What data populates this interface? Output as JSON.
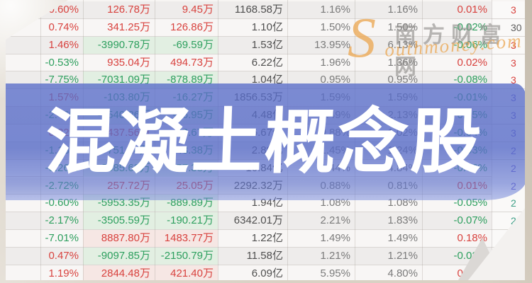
{
  "banner": {
    "title": "混凝土概念股"
  },
  "watermark": {
    "s": "S",
    "cn": "南方财富网",
    "en": "outhmoney.com"
  },
  "colors": {
    "red": "#d8423e",
    "green": "#2d9f5e",
    "banner_blue": "#586cc8",
    "flash_green": "#e2efe2",
    "flash_pink": "#f6e7e4",
    "watermark_orange": "#ecaa58",
    "code_purple": "#6a5fd0",
    "code_teal": "#3d9f86",
    "code_gray": "#5d5d5d"
  },
  "table": {
    "rows": [
      {
        "values": [
          "0.60%",
          "126.78万",
          "9.45万",
          "1168.58万",
          "1.16%",
          "1.16%",
          "0.01%",
          "3"
        ],
        "code_color": "red",
        "flash": [
          "",
          ""
        ]
      },
      {
        "values": [
          "0.74%",
          "341.25万",
          "126.86万",
          "1.10亿",
          "1.50%",
          "1.50%",
          "-0.02%",
          "30"
        ],
        "code_color": "gray",
        "flash": [
          "",
          ""
        ]
      },
      {
        "values": [
          "1.46%",
          "-3990.78万",
          "-69.59万",
          "1.53亿",
          "13.95%",
          "6.13%",
          "-0.06%",
          "3"
        ],
        "code_color": "red",
        "flash": [
          "g",
          "g"
        ]
      },
      {
        "values": [
          "-0.53%",
          "935.04万",
          "494.73万",
          "6.22亿",
          "1.96%",
          "1.36%",
          "0.02%",
          "3"
        ],
        "code_color": "red",
        "flash": [
          "",
          ""
        ]
      },
      {
        "values": [
          "-7.75%",
          "-7031.09万",
          "-878.89万",
          "1.04亿",
          "0.95%",
          "0.95%",
          "-0.08%",
          "3"
        ],
        "code_color": "red",
        "flash": [
          "g",
          "g"
        ]
      },
      {
        "values": [
          "1.57%",
          "-103.80万",
          "-16.27万",
          "1856.53万",
          "1.59%",
          "1.59%",
          "-0.01%",
          "3"
        ],
        "code_color": "purple",
        "flash": [
          "",
          ""
        ]
      },
      {
        "values": [
          "-2.46%",
          "-1540.26万",
          "-66.95万",
          "4.48亿",
          "1.49%",
          "2.13%",
          "-0.05%",
          "3"
        ],
        "code_color": "purple",
        "flash": [
          "g",
          "g"
        ]
      },
      {
        "values": [
          "0.32%",
          "437.56万",
          "-93.67万",
          "6.67亿",
          "0.88%",
          "1.02%",
          "-0.04%",
          "3"
        ],
        "code_color": "purple",
        "flash": [
          "",
          ""
        ]
      },
      {
        "values": [
          "-1.18%",
          "-751.24万",
          "-43.38万",
          "2.89亿",
          "1.45%",
          "1.24%",
          "-0.03%",
          "2"
        ],
        "code_color": "purple",
        "flash": [
          "",
          ""
        ]
      },
      {
        "values": [
          "-0.26%",
          "-3585.62万",
          "-57.38万",
          "10.84亿",
          "1.44%",
          "4.84%",
          "-0.06%",
          "2"
        ],
        "code_color": "purple",
        "flash": [
          "g",
          "g"
        ]
      },
      {
        "values": [
          "-2.72%",
          "257.72万",
          "25.05万",
          "2292.32万",
          "0.88%",
          "0.81%",
          "0.01%",
          "2"
        ],
        "code_color": "purple",
        "flash": [
          "",
          ""
        ]
      },
      {
        "values": [
          "-0.60%",
          "-5953.35万",
          "-889.89万",
          "1.94亿",
          "1.08%",
          "1.08%",
          "-0.05%",
          "2"
        ],
        "code_color": "teal",
        "flash": [
          "g",
          "g"
        ]
      },
      {
        "values": [
          "-2.17%",
          "-3505.59万",
          "-190.21万",
          "6342.01万",
          "2.21%",
          "1.83%",
          "-0.07%",
          "2"
        ],
        "code_color": "teal",
        "flash": [
          "g",
          "g"
        ]
      },
      {
        "values": [
          "-7.01%",
          "8887.80万",
          "1483.77万",
          "1.22亿",
          "1.49%",
          "1.49%",
          "0.18%",
          "2"
        ],
        "code_color": "teal",
        "flash": [
          "p",
          "p"
        ]
      },
      {
        "values": [
          "0.47%",
          "-9097.85万",
          "-2150.79万",
          "11.58亿",
          "1.21%",
          "1.21%",
          "-0.02%",
          "2"
        ],
        "code_color": "teal",
        "flash": [
          "g",
          "g"
        ]
      },
      {
        "values": [
          "1.19%",
          "2844.48万",
          "421.40万",
          "6.09亿",
          "5.95%",
          "4.80%",
          "0.04%",
          "2"
        ],
        "code_color": "teal",
        "flash": [
          "p",
          "p"
        ]
      }
    ]
  }
}
